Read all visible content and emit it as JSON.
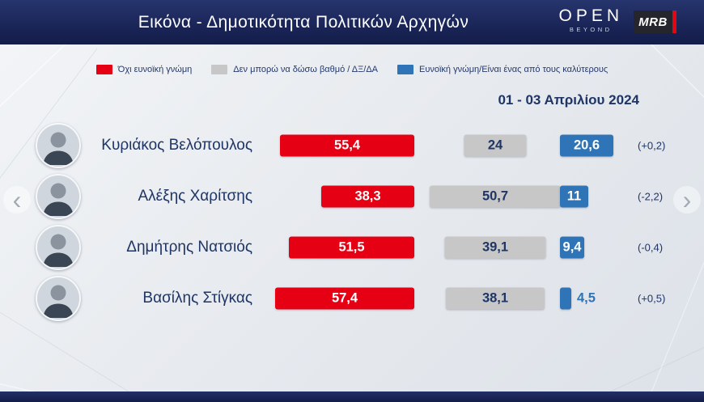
{
  "header": {
    "title": "Εικόνα - Δημοτικότητα Πολιτικών Αρχηγών",
    "channel": "OPEN",
    "channel_sub": "BEYOND",
    "brand": "MRB"
  },
  "date_range": "01 - 03 Απριλίου 2024",
  "carousel": {
    "prev": "‹",
    "next": "›"
  },
  "chart_data": {
    "type": "bar",
    "orientation": "horizontal",
    "title": "Εικόνα - Δημοτικότητα Πολιτικών Αρχηγών",
    "categories": [
      "Κυριάκος Βελόπουλος",
      "Αλέξης Χαρίτσης",
      "Δημήτρης Νατσιός",
      "Βασίλης Στίγκας"
    ],
    "series": [
      {
        "name": "Όχι ευνοϊκή γνώμη",
        "color": "#e60013",
        "values": [
          55.4,
          38.3,
          51.5,
          57.4
        ]
      },
      {
        "name": "Δεν μπορώ να δώσω βαθμό  / ΔΞ/ΔΑ",
        "color": "#c7c7c7",
        "values": [
          24,
          50.7,
          39.1,
          38.1
        ]
      },
      {
        "name": "Ευνοϊκή γνώμη/Είναι ένας από τους καλύτερους",
        "color": "#2e74b6",
        "values": [
          20.6,
          11,
          9.4,
          4.5
        ]
      }
    ],
    "changes": [
      "(+0,2)",
      "(-2,2)",
      "(-0,4)",
      "(+0,5)"
    ],
    "xlim": [
      0,
      60
    ],
    "legend_position": "top",
    "grid": false
  }
}
